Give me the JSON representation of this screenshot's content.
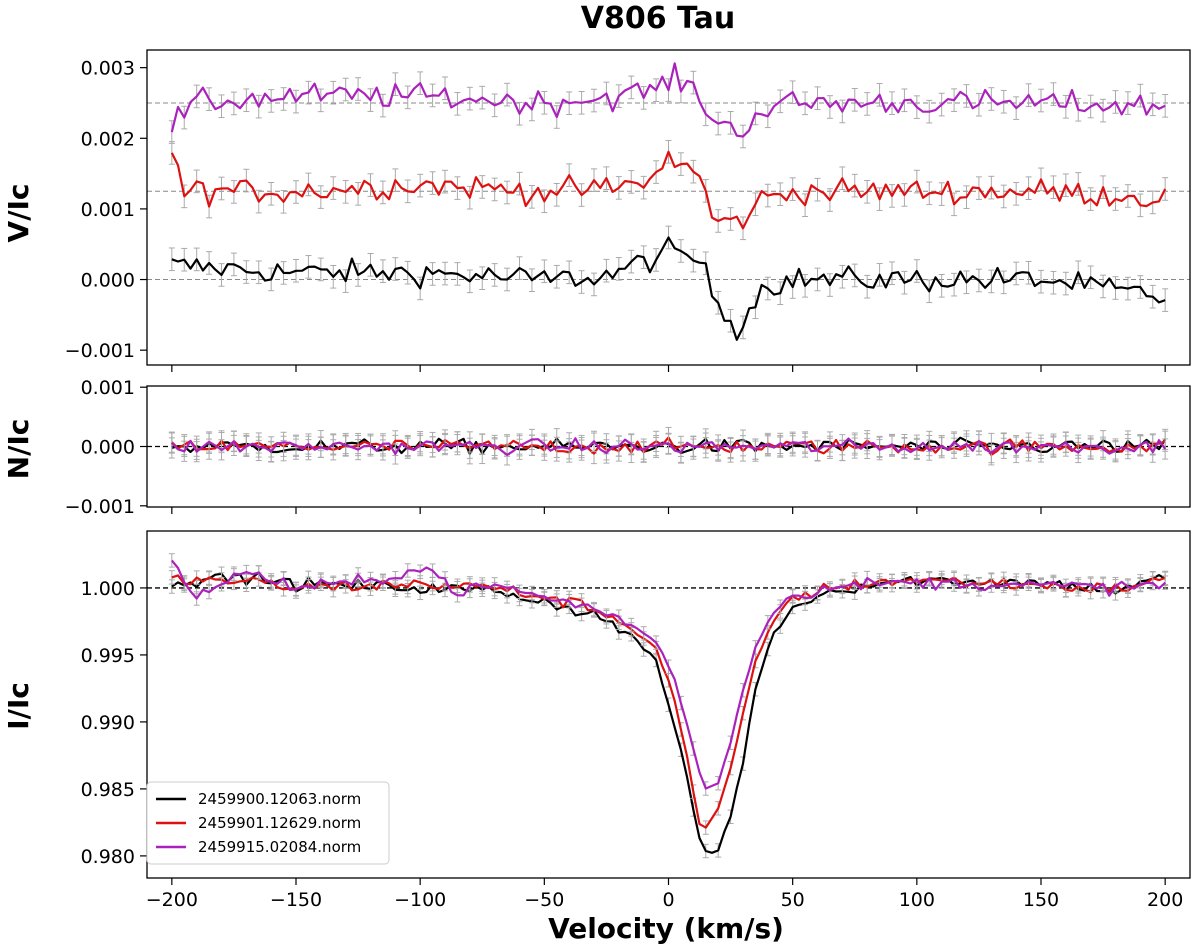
{
  "chart_data": {
    "type": "line",
    "title": "V806 Tau",
    "xlabel": "Velocity (km/s)",
    "xlim": [
      -210,
      210
    ],
    "xticks": [
      -200,
      -150,
      -100,
      -50,
      0,
      50,
      100,
      150,
      200
    ],
    "xtick_labels": [
      "−200",
      "−150",
      "−100",
      "−50",
      "0",
      "50",
      "100",
      "150",
      "200"
    ],
    "colors": {
      "s1": "#000000",
      "s2": "#dd1111",
      "s3": "#aa22bb",
      "errorbar": "#aaaaaa"
    },
    "legend": {
      "placement": "lower-left",
      "entries": [
        "2459900.12063.norm",
        "2459901.12629.norm",
        "2459915.02084.norm"
      ]
    },
    "panels": [
      {
        "name": "V",
        "ylabel": "V/Ic",
        "ylim": [
          -0.00121,
          0.00325
        ],
        "yticks": [
          0.003,
          0.002,
          0.001,
          0.0,
          -0.001
        ],
        "ytick_labels": [
          "0.003",
          "0.002",
          "0.001",
          "0.000",
          "−0.001"
        ],
        "reference_lines": [
          0.0025,
          0.00125,
          0.0
        ],
        "series": [
          {
            "key": "s1",
            "offset": 0.0,
            "points": [
              [
                -200,
                0.0002
              ],
              [
                -150,
                0.0001
              ],
              [
                -100,
                0.0001
              ],
              [
                -50,
                0.0
              ],
              [
                -25,
                5e-05
              ],
              [
                -10,
                0.00025
              ],
              [
                0,
                0.0004
              ],
              [
                12,
                0.0003
              ],
              [
                20,
                -0.00035
              ],
              [
                28,
                -0.0007
              ],
              [
                38,
                -0.0001
              ],
              [
                50,
                0.0
              ],
              [
                100,
                0.0
              ],
              [
                150,
                0.0
              ],
              [
                200,
                -0.00025
              ]
            ]
          },
          {
            "key": "s2",
            "offset": 0.00125,
            "points": [
              [
                -200,
                0.0005
              ],
              [
                -195,
                0.0
              ],
              [
                -150,
                0.0
              ],
              [
                -100,
                0.0001
              ],
              [
                -50,
                0.0
              ],
              [
                -20,
                5e-05
              ],
              [
                -5,
                0.0002
              ],
              [
                0,
                0.0005
              ],
              [
                12,
                0.00025
              ],
              [
                18,
                -0.0004
              ],
              [
                28,
                -0.00045
              ],
              [
                38,
                -0.0001
              ],
              [
                50,
                0.0
              ],
              [
                100,
                0.0
              ],
              [
                150,
                0.0
              ],
              [
                200,
                -0.0001
              ]
            ]
          },
          {
            "key": "s3",
            "offset": 0.0025,
            "points": [
              [
                -200,
                -0.0003
              ],
              [
                -190,
                0.0
              ],
              [
                -150,
                0.0001
              ],
              [
                -100,
                0.0001
              ],
              [
                -50,
                0.0
              ],
              [
                -20,
                0.0001
              ],
              [
                -5,
                0.0002
              ],
              [
                2,
                0.00035
              ],
              [
                12,
                0.00015
              ],
              [
                18,
                -0.00025
              ],
              [
                28,
                -0.0004
              ],
              [
                38,
                -0.0001
              ],
              [
                50,
                0.0
              ],
              [
                100,
                0.0
              ],
              [
                150,
                0.0
              ],
              [
                200,
                -5e-05
              ]
            ]
          }
        ]
      },
      {
        "name": "N",
        "ylabel": "N/Ic",
        "ylim": [
          -0.00102,
          0.00102
        ],
        "yticks": [
          0.001,
          0.0,
          -0.001
        ],
        "ytick_labels": [
          "0.001",
          "0.000",
          "−0.001"
        ],
        "reference_lines": [
          0.0
        ],
        "series": [
          {
            "key": "s1",
            "offset": 0.0,
            "points": [
              [
                -200,
                0.0
              ],
              [
                200,
                0.0
              ]
            ]
          },
          {
            "key": "s2",
            "offset": 0.0,
            "points": [
              [
                -200,
                0.0
              ],
              [
                200,
                0.0
              ]
            ]
          },
          {
            "key": "s3",
            "offset": 0.0,
            "points": [
              [
                -200,
                0.0
              ],
              [
                200,
                0.0
              ]
            ]
          }
        ]
      },
      {
        "name": "I",
        "ylabel": "I/Ic",
        "ylim": [
          0.97835,
          1.00425
        ],
        "yticks": [
          1.0,
          0.995,
          0.99,
          0.985,
          0.98
        ],
        "ytick_labels": [
          "1.000",
          "0.995",
          "0.990",
          "0.985",
          "0.980"
        ],
        "reference_lines": [
          1.0
        ],
        "series": [
          {
            "key": "s1",
            "offset": 0.0,
            "points": [
              [
                -200,
                1.0005
              ],
              [
                -170,
                1.0008
              ],
              [
                -150,
                1.0003
              ],
              [
                -100,
                1.0
              ],
              [
                -70,
                0.9998
              ],
              [
                -50,
                0.999
              ],
              [
                -30,
                0.998
              ],
              [
                -15,
                0.9965
              ],
              [
                -5,
                0.9945
              ],
              [
                2,
                0.99
              ],
              [
                8,
                0.9855
              ],
              [
                12,
                0.9815
              ],
              [
                16,
                0.98
              ],
              [
                20,
                0.9805
              ],
              [
                25,
                0.983
              ],
              [
                30,
                0.987
              ],
              [
                35,
                0.9925
              ],
              [
                42,
                0.9965
              ],
              [
                50,
                0.9985
              ],
              [
                60,
                0.9995
              ],
              [
                80,
                1.0003
              ],
              [
                100,
                1.0006
              ],
              [
                150,
                1.0004
              ],
              [
                180,
                0.9998
              ],
              [
                200,
                1.0008
              ]
            ]
          },
          {
            "key": "s2",
            "offset": 0.0,
            "points": [
              [
                -200,
                1.0006
              ],
              [
                -170,
                1.0005
              ],
              [
                -150,
                1.0
              ],
              [
                -100,
                1.0003
              ],
              [
                -70,
                1.0
              ],
              [
                -50,
                0.9993
              ],
              [
                -30,
                0.9985
              ],
              [
                -15,
                0.997
              ],
              [
                -5,
                0.9955
              ],
              [
                2,
                0.992
              ],
              [
                8,
                0.987
              ],
              [
                12,
                0.9825
              ],
              [
                15,
                0.982
              ],
              [
                20,
                0.9835
              ],
              [
                25,
                0.9865
              ],
              [
                30,
                0.9905
              ],
              [
                35,
                0.9945
              ],
              [
                42,
                0.9975
              ],
              [
                50,
                0.9993
              ],
              [
                60,
                0.9998
              ],
              [
                80,
                1.0004
              ],
              [
                100,
                1.0006
              ],
              [
                150,
                1.0002
              ],
              [
                180,
                0.9999
              ],
              [
                200,
                1.0007
              ]
            ]
          },
          {
            "key": "s3",
            "offset": 0.0,
            "points": [
              [
                -200,
                1.0018
              ],
              [
                -195,
                1.0005
              ],
              [
                -190,
                0.9995
              ],
              [
                -170,
                1.0012
              ],
              [
                -150,
                1.0
              ],
              [
                -120,
                1.0005
              ],
              [
                -100,
                1.0015
              ],
              [
                -95,
                1.0012
              ],
              [
                -85,
                0.9997
              ],
              [
                -70,
                1.0002
              ],
              [
                -50,
                0.9993
              ],
              [
                -30,
                0.9985
              ],
              [
                -15,
                0.9972
              ],
              [
                -5,
                0.996
              ],
              [
                2,
                0.9935
              ],
              [
                8,
                0.9895
              ],
              [
                12,
                0.9865
              ],
              [
                15,
                0.985
              ],
              [
                20,
                0.9855
              ],
              [
                25,
                0.9885
              ],
              [
                30,
                0.9925
              ],
              [
                35,
                0.9955
              ],
              [
                42,
                0.9982
              ],
              [
                50,
                0.9995
              ],
              [
                60,
                0.9998
              ],
              [
                80,
                1.0003
              ],
              [
                100,
                1.0004
              ],
              [
                150,
                1.0002
              ],
              [
                180,
                1.0
              ],
              [
                200,
                1.0003
              ]
            ]
          }
        ]
      }
    ]
  }
}
